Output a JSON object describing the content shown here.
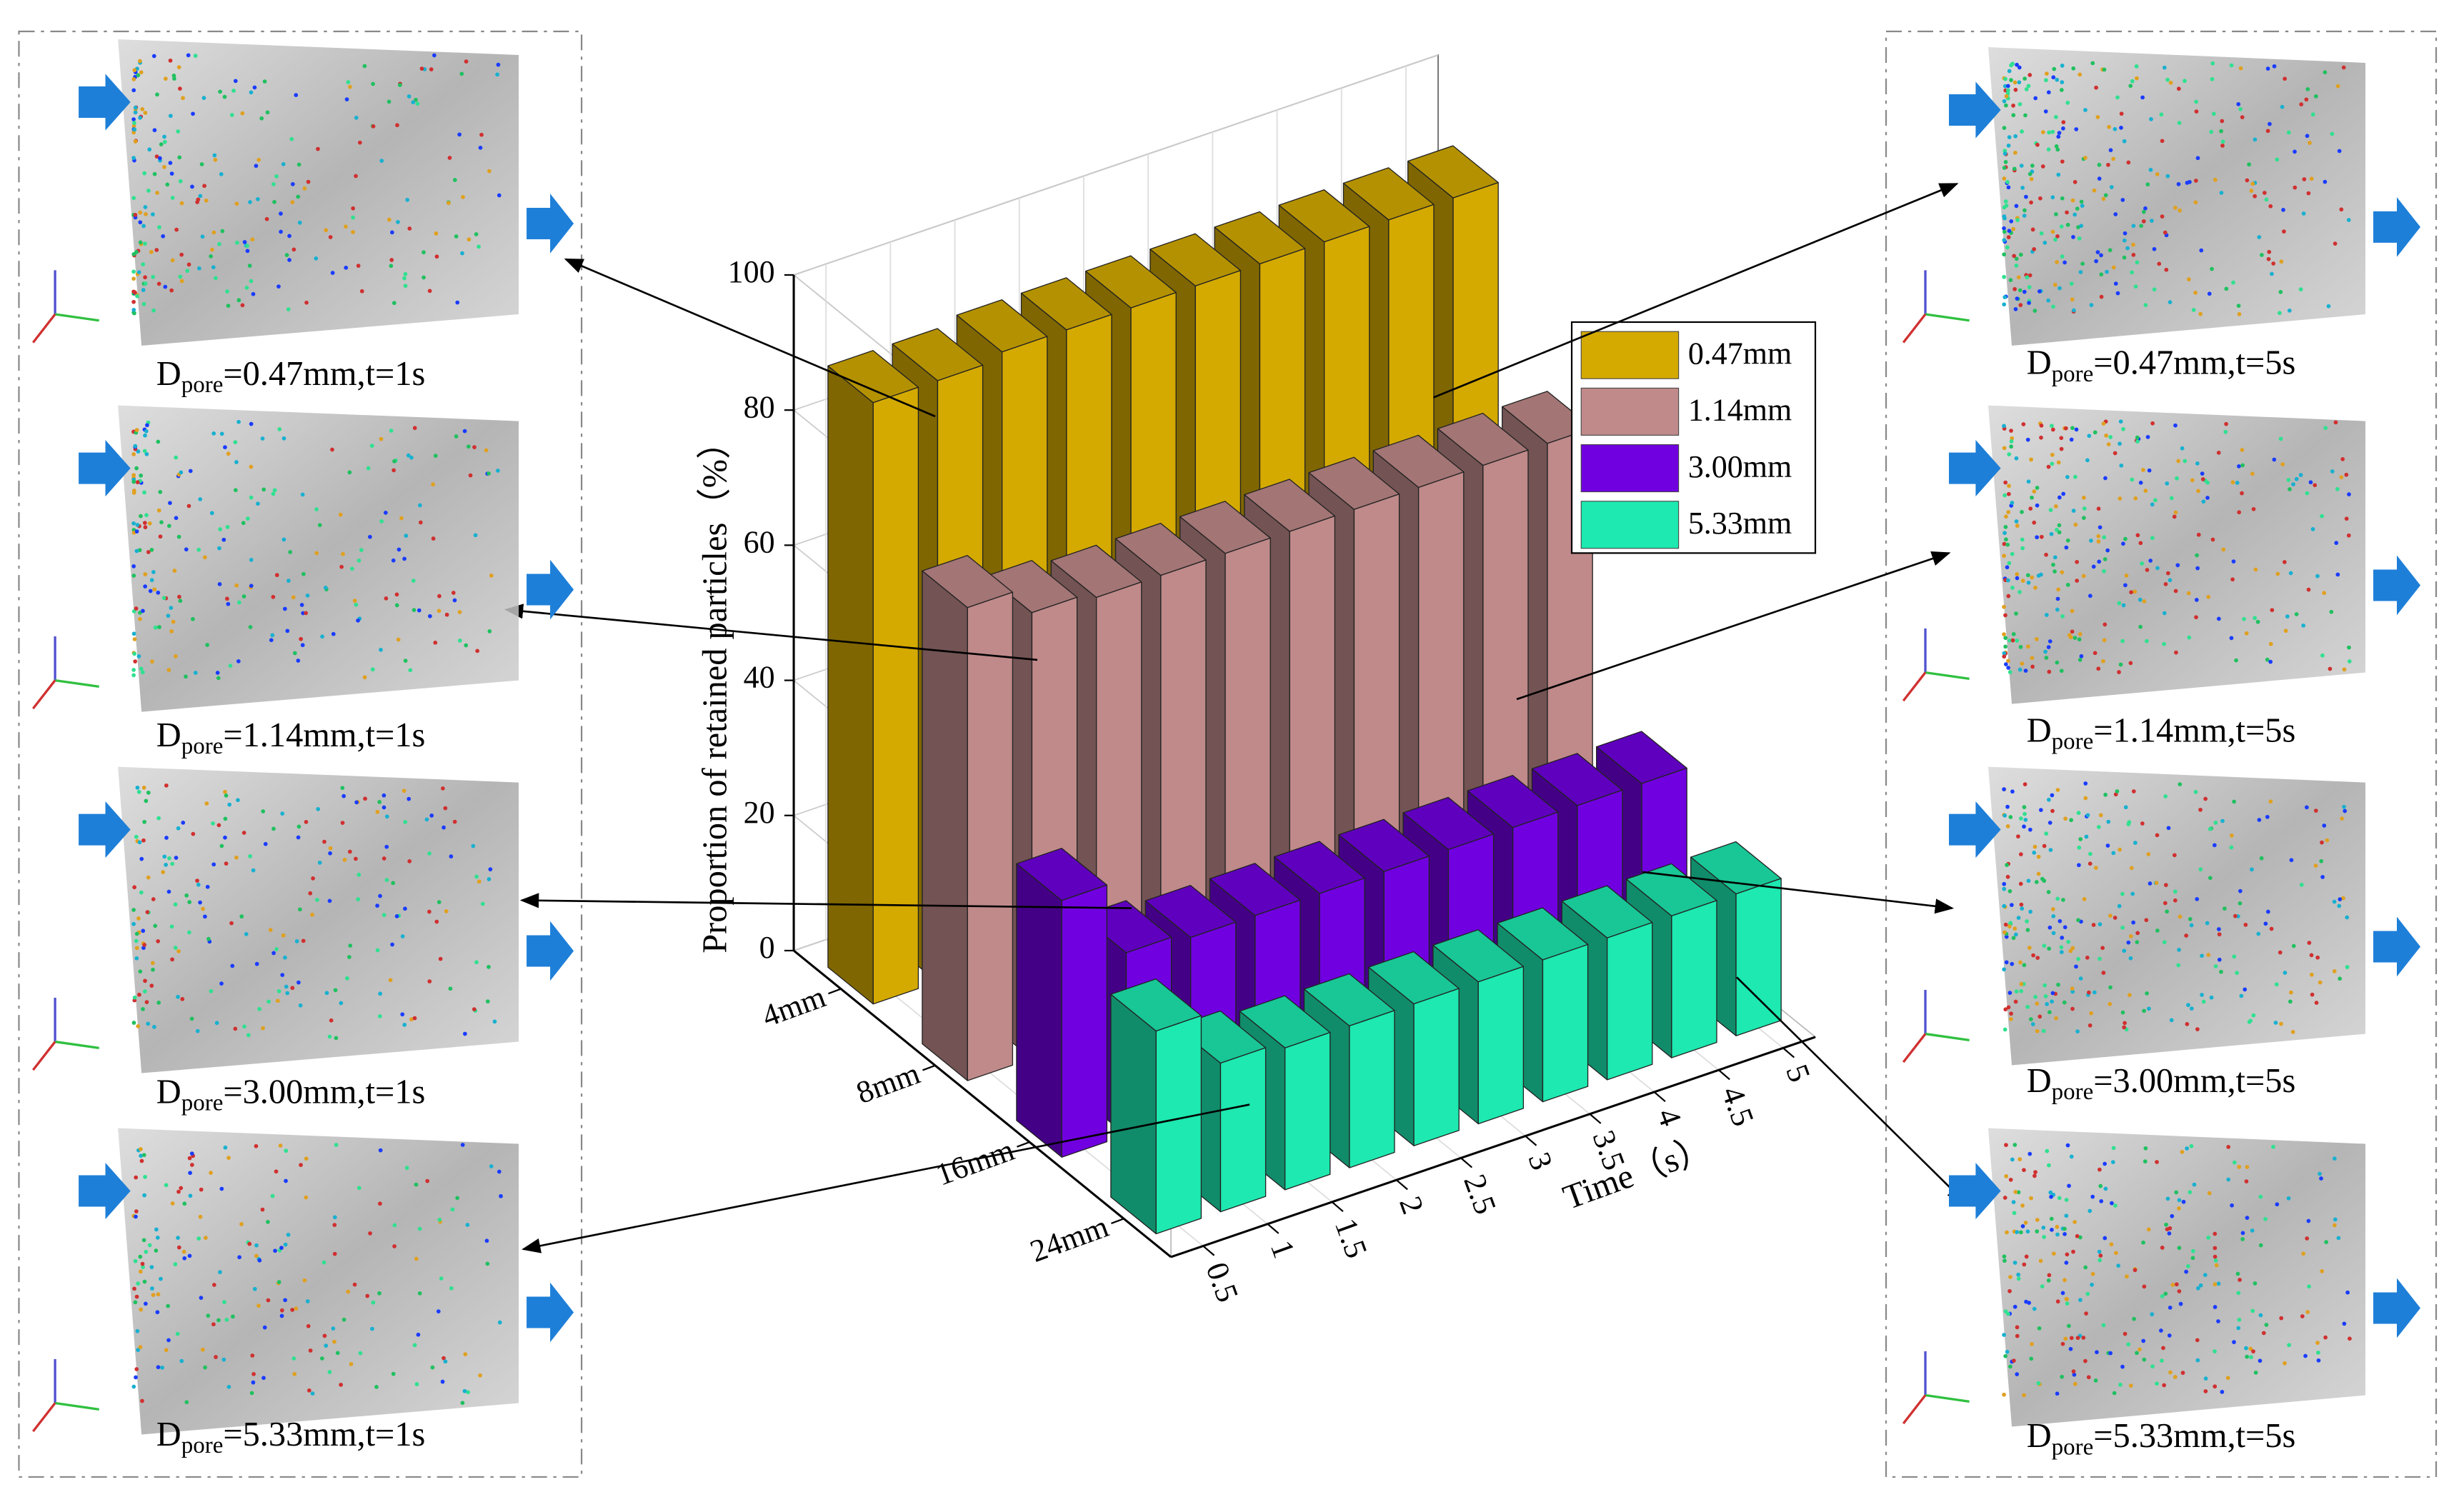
{
  "chart_data": {
    "type": "bar3d",
    "y_label": "Proportion of retained particles（%）",
    "x_label": "Time（s）",
    "categories": [
      "0.5",
      "1",
      "1.5",
      "2",
      "2.5",
      "3",
      "3.5",
      "4",
      "4.5",
      "5"
    ],
    "depth_categories": [
      "4mm",
      "8mm",
      "16mm",
      "24mm"
    ],
    "series": [
      {
        "name": "0.47mm",
        "color": "#d4aa00",
        "values": [
          89,
          89,
          90,
          90,
          90,
          90,
          90,
          90,
          90,
          90
        ]
      },
      {
        "name": "1.14mm",
        "color": "#c08a8a",
        "values": [
          70,
          66,
          65,
          65,
          65,
          65,
          65,
          65,
          65,
          65
        ]
      },
      {
        "name": "3.00mm",
        "color": "#7000e0",
        "values": [
          38,
          27,
          26,
          26,
          26,
          26,
          26,
          26,
          26,
          26
        ]
      },
      {
        "name": "5.33mm",
        "color": "#1de9b0",
        "values": [
          30,
          22,
          21,
          21,
          21,
          21,
          21,
          21,
          21,
          21
        ]
      }
    ],
    "ylim": [
      0,
      100
    ],
    "yticks": [
      0,
      20,
      40,
      60,
      80,
      100
    ],
    "grid": true,
    "legend": "upper right"
  },
  "panels": {
    "left": [
      {
        "symbol": "D",
        "subscript": "pore",
        "text": "=0.47mm,t=1s"
      },
      {
        "symbol": "D",
        "subscript": "pore",
        "text": "=1.14mm,t=1s"
      },
      {
        "symbol": "D",
        "subscript": "pore",
        "text": "=3.00mm,t=1s"
      },
      {
        "symbol": "D",
        "subscript": "pore",
        "text": "=5.33mm,t=1s"
      }
    ],
    "right": [
      {
        "symbol": "D",
        "subscript": "pore",
        "text": "=0.47mm,t=5s"
      },
      {
        "symbol": "D",
        "subscript": "pore",
        "text": "=1.14mm,t=5s"
      },
      {
        "symbol": "D",
        "subscript": "pore",
        "text": "=3.00mm,t=5s"
      },
      {
        "symbol": "D",
        "subscript": "pore",
        "text": "=5.33mm,t=5s"
      }
    ]
  }
}
